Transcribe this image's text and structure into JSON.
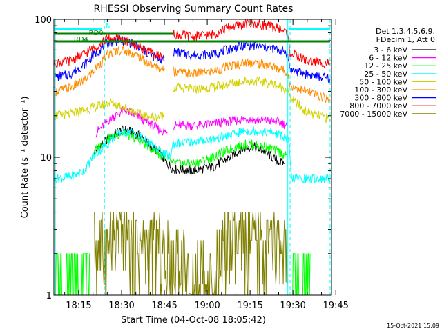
{
  "chart_data": {
    "type": "line",
    "title": "RHESSI Observing Summary Count Rates",
    "xlabel": "Start Time (04-Oct-08 18:05:42)",
    "ylabel": "Count Rate (s⁻¹ detector⁻¹)",
    "y_scale": "log",
    "ylim": [
      1,
      100
    ],
    "xlim_minutes": [
      6.3,
      103.5
    ],
    "x_ticks": [
      {
        "m": 15,
        "label": "18:15"
      },
      {
        "m": 30,
        "label": "18:30"
      },
      {
        "m": 45,
        "label": "18:45"
      },
      {
        "m": 60,
        "label": "19:00"
      },
      {
        "m": 75,
        "label": "19:15"
      },
      {
        "m": 90,
        "label": "19:30"
      },
      {
        "m": 105,
        "label": "19:45"
      }
    ],
    "y_ticks": [
      {
        "v": 1,
        "label": "1"
      },
      {
        "v": 10,
        "label": "10"
      },
      {
        "v": 100,
        "label": "100"
      }
    ],
    "legend_header": [
      "Det 1,3,4,5,6,9,",
      "FDecim 1, Att 0"
    ],
    "legend_position": "right",
    "date_stamp": "15-Oct-2021 15:09",
    "flags": {
      "N": {
        "label": "N",
        "color": "#00ffff",
        "segments": [
          [
            6.5,
            23.0
          ],
          [
            88.5,
            103.0
          ]
        ]
      },
      "RD0": {
        "label": "RD0",
        "color": "#008000",
        "segments": [
          [
            6.5,
            48.0
          ]
        ]
      },
      "RD4": {
        "label": "RD4",
        "color": "#008000",
        "segments": [
          [
            6.5,
            103.0
          ]
        ]
      }
    },
    "vlines_cyan_dashed": [
      24.0,
      89.0,
      103.0
    ],
    "vlines_cyan_solid": [
      6.8,
      88.2
    ],
    "series": [
      {
        "name": "3 - 6 keV",
        "color": "#000000",
        "points": [
          [
            20,
            -1
          ],
          [
            20.5,
            11
          ],
          [
            24,
            13
          ],
          [
            28,
            15
          ],
          [
            31,
            16
          ],
          [
            34,
            15
          ],
          [
            37,
            14
          ],
          [
            40,
            12
          ],
          [
            43,
            11
          ],
          [
            45,
            9.5
          ],
          [
            48,
            8.2
          ],
          [
            55,
            8
          ],
          [
            62,
            8.5
          ],
          [
            68,
            10
          ],
          [
            72,
            11.5
          ],
          [
            76,
            12
          ],
          [
            80,
            11
          ],
          [
            84,
            9.5
          ],
          [
            87,
            9
          ],
          [
            89,
            -1
          ]
        ]
      },
      {
        "name": "6 - 12 keV",
        "color": "#ff00ff",
        "points": [
          [
            20,
            -1
          ],
          [
            21,
            15
          ],
          [
            26,
            19
          ],
          [
            31,
            22
          ],
          [
            35,
            20
          ],
          [
            39,
            18
          ],
          [
            43,
            16
          ],
          [
            46,
            15
          ],
          [
            48,
            -1
          ],
          [
            48.1,
            17
          ],
          [
            58,
            17
          ],
          [
            66,
            18
          ],
          [
            74,
            19
          ],
          [
            80,
            18.5
          ],
          [
            85,
            18
          ],
          [
            88,
            17
          ],
          [
            89,
            -1
          ]
        ]
      },
      {
        "name": "12 - 25 keV",
        "color": "#00ff00",
        "points": [
          [
            6.5,
            2
          ],
          [
            19,
            2
          ],
          [
            20,
            -1
          ],
          [
            20.3,
            11
          ],
          [
            25,
            13.5
          ],
          [
            30,
            15
          ],
          [
            34,
            14
          ],
          [
            38,
            12.5
          ],
          [
            42,
            11
          ],
          [
            45,
            10
          ],
          [
            48,
            9
          ],
          [
            55,
            9
          ],
          [
            62,
            10
          ],
          [
            68,
            11.5
          ],
          [
            74,
            12.5
          ],
          [
            80,
            12
          ],
          [
            85,
            11
          ],
          [
            88,
            10
          ],
          [
            89,
            -1
          ],
          [
            89.5,
            2
          ],
          [
            96,
            2
          ]
        ]
      },
      {
        "name": "25 - 50 keV",
        "color": "#00ffff",
        "points": [
          [
            6.5,
            7
          ],
          [
            12,
            7.2
          ],
          [
            17,
            8
          ],
          [
            20,
            10
          ],
          [
            24,
            12
          ],
          [
            29,
            15
          ],
          [
            33,
            15.5
          ],
          [
            37,
            14
          ],
          [
            41,
            12
          ],
          [
            45,
            10.5
          ],
          [
            47,
            10
          ],
          [
            48,
            12.5
          ],
          [
            55,
            13
          ],
          [
            62,
            13.5
          ],
          [
            68,
            14.5
          ],
          [
            73,
            15.5
          ],
          [
            78,
            15.5
          ],
          [
            83,
            15
          ],
          [
            87,
            14
          ],
          [
            88.5,
            13
          ],
          [
            89.5,
            7
          ],
          [
            95,
            7
          ],
          [
            103,
            7
          ]
        ]
      },
      {
        "name": "50 - 100 keV",
        "color": "#d2d200",
        "points": [
          [
            6.5,
            20
          ],
          [
            12,
            20.5
          ],
          [
            17,
            22
          ],
          [
            20,
            23
          ],
          [
            22,
            23.5
          ],
          [
            26,
            25
          ],
          [
            30,
            23.5
          ],
          [
            34,
            21.5
          ],
          [
            38,
            20
          ],
          [
            42,
            19.5
          ],
          [
            45,
            20
          ],
          [
            48,
            -1
          ],
          [
            48.1,
            32
          ],
          [
            55,
            31
          ],
          [
            62,
            32
          ],
          [
            68,
            34
          ],
          [
            74,
            36
          ],
          [
            80,
            35
          ],
          [
            85,
            33
          ],
          [
            88,
            31
          ],
          [
            89,
            27
          ],
          [
            95,
            21
          ],
          [
            103,
            19
          ]
        ]
      },
      {
        "name": "100 - 300 keV",
        "color": "#ff8c00",
        "points": [
          [
            6.5,
            30
          ],
          [
            12,
            32
          ],
          [
            17,
            36
          ],
          [
            21,
            44
          ],
          [
            25,
            55
          ],
          [
            29,
            60
          ],
          [
            33,
            58
          ],
          [
            37,
            52
          ],
          [
            41,
            46
          ],
          [
            45,
            43
          ],
          [
            48,
            -1
          ],
          [
            48.1,
            42
          ],
          [
            55,
            40
          ],
          [
            62,
            42
          ],
          [
            68,
            46
          ],
          [
            74,
            49
          ],
          [
            80,
            47
          ],
          [
            85,
            44
          ],
          [
            88,
            42
          ],
          [
            89,
            33
          ],
          [
            95,
            30
          ],
          [
            103,
            26
          ]
        ]
      },
      {
        "name": "300 - 800 keV",
        "color": "#0000ff",
        "points": [
          [
            6.5,
            38
          ],
          [
            12,
            40
          ],
          [
            17,
            47
          ],
          [
            21,
            57
          ],
          [
            25,
            67
          ],
          [
            29,
            71
          ],
          [
            33,
            68
          ],
          [
            37,
            60
          ],
          [
            41,
            54
          ],
          [
            45,
            50
          ],
          [
            48,
            -1
          ],
          [
            48.1,
            58
          ],
          [
            55,
            55
          ],
          [
            62,
            56
          ],
          [
            68,
            61
          ],
          [
            74,
            65
          ],
          [
            80,
            63
          ],
          [
            85,
            60
          ],
          [
            88,
            57
          ],
          [
            89,
            43
          ],
          [
            95,
            40
          ],
          [
            103,
            37
          ]
        ]
      },
      {
        "name": "800 - 7000 keV",
        "color": "#ff0000",
        "points": [
          [
            6.5,
            48
          ],
          [
            12,
            50
          ],
          [
            17,
            56
          ],
          [
            21,
            64
          ],
          [
            25,
            72
          ],
          [
            29,
            72
          ],
          [
            33,
            68
          ],
          [
            37,
            62
          ],
          [
            41,
            56
          ],
          [
            45,
            53
          ],
          [
            48,
            -1
          ],
          [
            48.1,
            78
          ],
          [
            55,
            75
          ],
          [
            62,
            78
          ],
          [
            68,
            88
          ],
          [
            74,
            93
          ],
          [
            80,
            91
          ],
          [
            85,
            86
          ],
          [
            88,
            80
          ],
          [
            89,
            57
          ],
          [
            95,
            50
          ],
          [
            103,
            48
          ]
        ]
      },
      {
        "name": "7000 - 15000 keV",
        "color": "#808000",
        "points": [
          [
            20,
            -1
          ],
          [
            20.5,
            2
          ],
          [
            24,
            2.5
          ],
          [
            26,
            3.5
          ],
          [
            29,
            4
          ],
          [
            31,
            3
          ],
          [
            33,
            2.8
          ],
          [
            35,
            2.5
          ],
          [
            37,
            2
          ],
          [
            41,
            1.7
          ],
          [
            44,
            1.4
          ],
          [
            47,
            1.2
          ],
          [
            55,
            1.0
          ],
          [
            62,
            1.0
          ],
          [
            65,
            1.4
          ],
          [
            70,
            1.8
          ],
          [
            75,
            2
          ],
          [
            80,
            1.8
          ],
          [
            85,
            1.5
          ],
          [
            88,
            1.2
          ],
          [
            89,
            -1
          ]
        ]
      }
    ]
  }
}
